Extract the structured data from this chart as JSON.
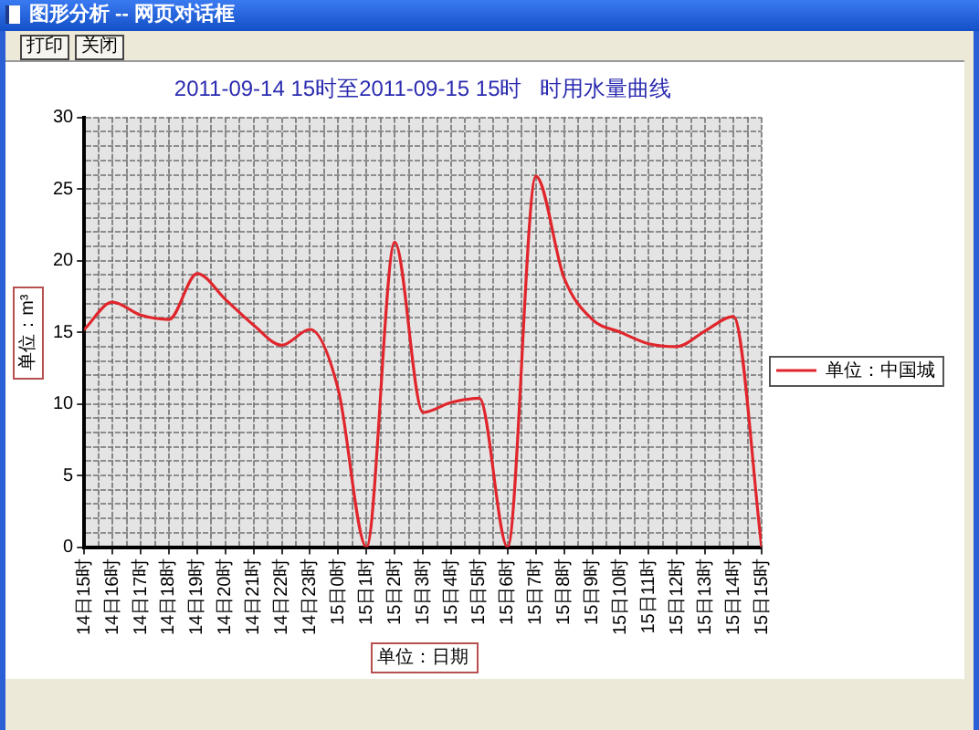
{
  "chart_data": {
    "type": "line",
    "title": "2011-09-14 15时至2011-09-15 15时   时用水量曲线",
    "xlabel": "单位：日期",
    "ylabel": "单位：m³",
    "categories": [
      "14日15时",
      "14日16时",
      "14日17时",
      "14日18时",
      "14日19时",
      "14日20时",
      "14日21时",
      "14日22时",
      "14日23时",
      "15日0时",
      "15日1时",
      "15日2时",
      "15日3时",
      "15日4时",
      "15日5时",
      "15日6时",
      "15日7时",
      "15日8时",
      "15日9时",
      "15日10时",
      "15日11时",
      "15日12时",
      "15日13时",
      "15日14时",
      "15日15时"
    ],
    "series": [
      {
        "name": "单位：中国城",
        "color": "#e0262c",
        "values": [
          15.2,
          17.1,
          16.2,
          15.9,
          19.1,
          17.3,
          15.5,
          14.1,
          15.2,
          11.0,
          0,
          21.3,
          9.4,
          10.1,
          10.4,
          0,
          25.9,
          18.8,
          15.9,
          15.0,
          14.2,
          14.0,
          15.1,
          16.1,
          0
        ]
      }
    ],
    "ylim": [
      0,
      30
    ],
    "yticks": [
      0,
      {
        "value": 1,
        "label": null
      },
      {
        "value": 2,
        "label": null
      },
      {
        "value": 3,
        "label": null
      },
      {
        "value": 4,
        "label": null
      },
      5,
      {
        "value": 6,
        "label": null
      },
      {
        "value": 7,
        "label": null
      },
      {
        "value": 8,
        "label": null
      },
      {
        "value": 9,
        "label": null
      },
      10,
      {
        "value": 11,
        "label": null
      },
      {
        "value": 12,
        "label": null
      },
      {
        "value": 13,
        "label": null
      },
      {
        "value": 14,
        "label": null
      },
      15,
      {
        "value": 16,
        "label": null
      },
      {
        "value": 17,
        "label": null
      },
      {
        "value": 18,
        "label": null
      },
      {
        "value": 19,
        "label": null
      },
      20,
      {
        "value": 21,
        "label": null
      },
      {
        "value": 22,
        "label": null
      },
      {
        "value": 23,
        "label": null
      },
      {
        "value": 24,
        "label": null
      },
      25,
      {
        "value": 26,
        "label": null
      },
      {
        "value": 27,
        "label": null
      },
      {
        "value": 28,
        "label": null
      },
      {
        "value": 29,
        "label": null
      },
      30
    ],
    "grid": true,
    "legend": "right",
    "annotations": [
      "图形分析 -- 网页对话框",
      "打印",
      "关闭"
    ]
  }
}
